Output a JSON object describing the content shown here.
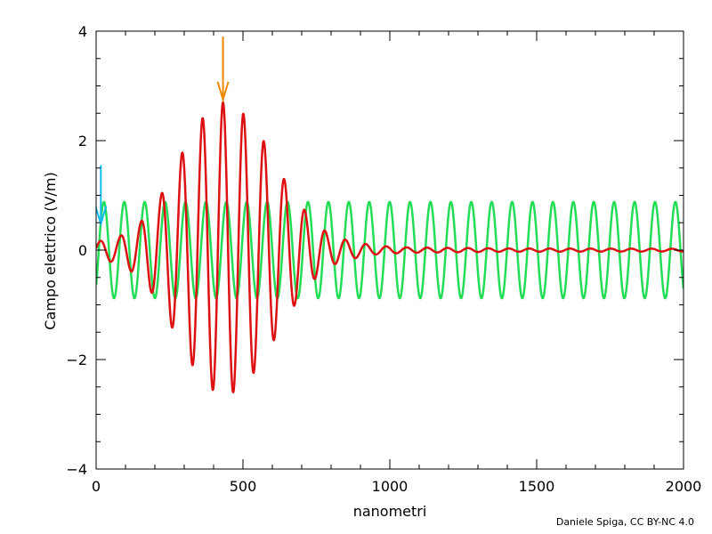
{
  "chart_data": {
    "type": "line",
    "title": "",
    "xlabel": "nanometri",
    "ylabel": "Campo elettrico (V/m)",
    "xlim": [
      0,
      2000
    ],
    "ylim": [
      -4,
      4
    ],
    "x_major_ticks": [
      0,
      500,
      1000,
      1500,
      2000
    ],
    "x_minor_ticks": [
      100,
      200,
      300,
      400,
      600,
      700,
      800,
      900,
      1100,
      1200,
      1300,
      1400,
      1600,
      1700,
      1800,
      1900
    ],
    "y_major_ticks": [
      -4,
      -2,
      0,
      2,
      4
    ],
    "y_minor_ticks": [
      -3.5,
      -3,
      -2.5,
      -1.5,
      -1,
      -0.5,
      0.5,
      1,
      1.5,
      2.5,
      3,
      3.5
    ],
    "x_tick_labels": [
      "0",
      "500",
      "1000",
      "1500",
      "2000"
    ],
    "y_tick_labels": [
      "−4",
      "−2",
      "0",
      "2",
      "4"
    ],
    "grid": false,
    "legend": "none",
    "series": [
      {
        "color": "#22dd55",
        "kind": "sinusoid",
        "amplitude": 0.88,
        "wavelength_nm": 69.5,
        "phase_shift_nm": 9,
        "line_width": 2.5
      },
      {
        "color": "#dd1111",
        "kind": "wave-packet",
        "x_range": [
          0,
          2000
        ],
        "peak_x": 432,
        "peak_value": 2.7,
        "wavelength_nm": 69.5,
        "envelope": [
          [
            0,
            0.15
          ],
          [
            80,
            0.25
          ],
          [
            150,
            0.5
          ],
          [
            220,
            1.0
          ],
          [
            290,
            1.75
          ],
          [
            360,
            2.4
          ],
          [
            432,
            2.7
          ],
          [
            500,
            2.5
          ],
          [
            570,
            2.0
          ],
          [
            640,
            1.3
          ],
          [
            720,
            0.65
          ],
          [
            790,
            0.3
          ],
          [
            860,
            0.17
          ],
          [
            950,
            0.08
          ],
          [
            1050,
            0.05
          ],
          [
            1200,
            0.04
          ],
          [
            1400,
            0.03
          ],
          [
            2000,
            0.025
          ]
        ],
        "line_width": 2.5
      }
    ],
    "annotations": [
      {
        "kind": "arrow-down",
        "color": "#11bbee",
        "x": 16,
        "y_from": 1.55,
        "y_to": 0.48
      },
      {
        "kind": "arrow-down",
        "color": "#ee8800",
        "x": 432,
        "y_from": 3.9,
        "y_to": 2.75
      }
    ]
  },
  "credit": "Daniele Spiga, CC BY-NC 4.0"
}
